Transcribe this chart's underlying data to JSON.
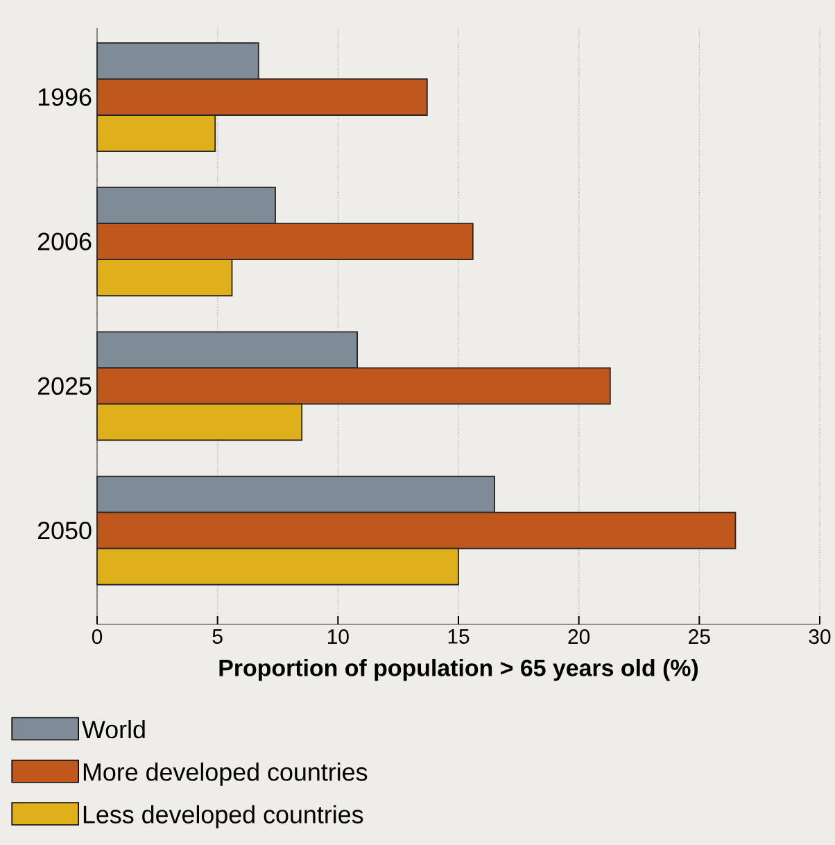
{
  "chart_data": {
    "type": "bar",
    "orientation": "horizontal",
    "categories": [
      "1996",
      "2006",
      "2025",
      "2050"
    ],
    "series": [
      {
        "name": "World",
        "color": "#7f8c98",
        "values": [
          6.7,
          7.4,
          10.8,
          16.5
        ]
      },
      {
        "name": "More developed countries",
        "color": "#c0581e",
        "values": [
          13.7,
          15.6,
          21.3,
          26.5
        ]
      },
      {
        "name": "Less developed countries",
        "color": "#dfb01c",
        "values": [
          4.9,
          5.6,
          8.5,
          15.0
        ]
      }
    ],
    "xlabel": "Proportion of population > 65 years old (%)",
    "xlim": [
      0,
      30
    ],
    "xticks": [
      0,
      5,
      10,
      15,
      20,
      25,
      30
    ],
    "grid": "x",
    "legend": "bottom"
  }
}
